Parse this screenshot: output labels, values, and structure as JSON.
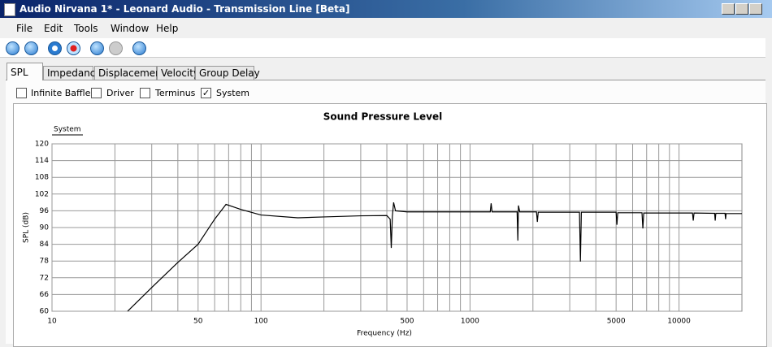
{
  "window": {
    "title": "Audio Nirvana 1* - Leonard Audio - Transmission Line [Beta]"
  },
  "menu": [
    "File",
    "Edit",
    "Tools",
    "Window",
    "Help"
  ],
  "tabs": [
    "SPL",
    "Impedance",
    "Displacement",
    "Velocity",
    "Group Delay"
  ],
  "checkboxes": [
    {
      "label": "Infinite Baffle",
      "checked": false
    },
    {
      "label": "Driver",
      "checked": false
    },
    {
      "label": "Terminus",
      "checked": false
    },
    {
      "label": "System",
      "checked": true
    }
  ],
  "chart_data": {
    "type": "line",
    "title": "Sound Pressure Level",
    "x_label": "Frequency (Hz)",
    "y_label": "SPL (dB)",
    "x_log": true,
    "grid": true,
    "x": [
      23,
      30,
      40,
      50,
      60,
      68,
      80,
      100,
      150,
      200,
      300,
      400,
      415,
      420,
      425,
      431,
      440,
      500,
      1000,
      1250,
      1262,
      1275,
      1680,
      1694,
      1705,
      1730,
      2080,
      2100,
      2120,
      3340,
      3375,
      3410,
      5000,
      5045,
      5090,
      6650,
      6714,
      6780,
      11600,
      11700,
      11800,
      14800,
      14900,
      15000,
      16600,
      16700,
      16800,
      20000
    ],
    "series": [
      {
        "name": "System",
        "color": "#000000",
        "values": [
          60,
          68.5,
          77.5,
          84,
          93,
          98.3,
          96.5,
          94.5,
          93.5,
          93.8,
          94.2,
          94.3,
          93,
          82.7,
          94,
          99,
          96,
          95.6,
          95.6,
          95.6,
          98.7,
          95.6,
          95.6,
          85.3,
          97.9,
          95.6,
          95.6,
          92,
          95.5,
          95.5,
          77.8,
          95.5,
          95.5,
          91,
          95.3,
          95.3,
          89.7,
          95.2,
          95.2,
          92.5,
          95.2,
          95.1,
          92.5,
          95.1,
          95.1,
          93,
          95,
          95
        ]
      }
    ],
    "xlim": [
      10,
      20000
    ],
    "ylim": [
      60,
      120
    ],
    "xticks": [
      10,
      50,
      100,
      500,
      1000,
      5000,
      10000
    ],
    "xgrid": [
      20,
      30,
      40,
      60,
      70,
      80,
      90,
      200,
      300,
      400,
      600,
      700,
      800,
      900,
      2000,
      3000,
      4000,
      6000,
      7000,
      8000,
      9000
    ],
    "yticks": [
      60,
      66,
      72,
      78,
      84,
      90,
      96,
      102,
      108,
      114,
      120
    ]
  }
}
